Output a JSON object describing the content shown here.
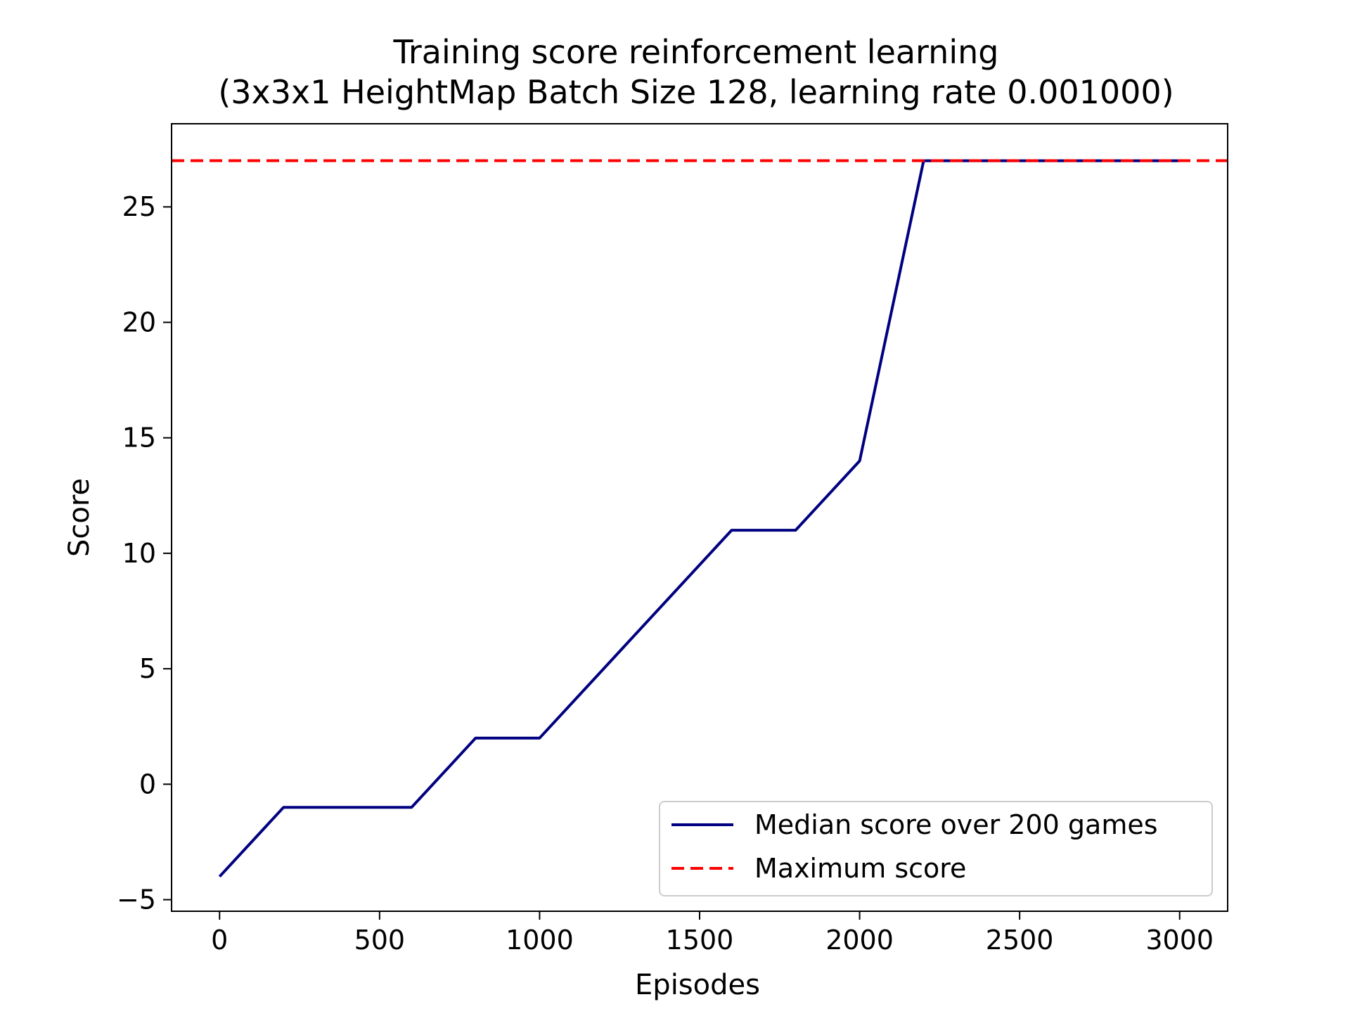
{
  "chart_data": {
    "type": "line",
    "title": "Training score reinforcement learning",
    "subtitle": "(3x3x1 HeightMap Batch Size 128, learning rate 0.001000)",
    "xlabel": "Episodes",
    "ylabel": "Score",
    "xlim": [
      -150,
      3150
    ],
    "ylim": [
      -5.5,
      28.6
    ],
    "xticks": [
      0,
      500,
      1000,
      1500,
      2000,
      2500,
      3000
    ],
    "yticks": [
      -5,
      0,
      5,
      10,
      15,
      20,
      25
    ],
    "ytick_labels": [
      "−5",
      "0",
      "5",
      "10",
      "15",
      "20",
      "25"
    ],
    "grid": false,
    "legend_position": "lower-right",
    "series": [
      {
        "name": "Median score over 200 games",
        "style": "solid",
        "color": "#000080",
        "x": [
          0,
          200,
          400,
          600,
          800,
          1000,
          1200,
          1400,
          1600,
          1800,
          2000,
          2200,
          2400,
          2600,
          2800,
          3000
        ],
        "y": [
          -4,
          -1,
          -1,
          -1,
          2,
          2,
          5,
          8,
          11,
          11,
          14,
          27,
          27,
          27,
          27,
          27
        ]
      },
      {
        "name": "Maximum score",
        "style": "dashed",
        "color": "#ff0000",
        "y_constant": 27
      }
    ]
  }
}
